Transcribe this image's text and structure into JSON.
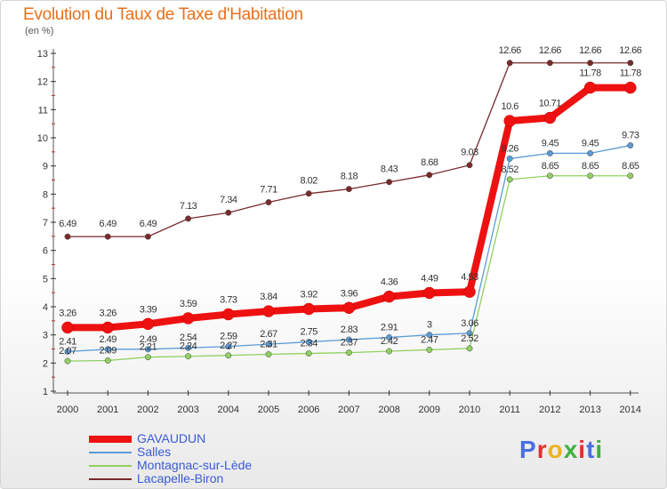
{
  "header": {
    "title": "Evolution du Taux de Taxe d'Habitation",
    "unit": "(en %)"
  },
  "brand": {
    "text": "Proxiti",
    "colors": [
      "#4a6fe0",
      "#e03030",
      "#f0b020",
      "#40b040",
      "#e03030",
      "#4a6fe0",
      "#40b040"
    ]
  },
  "chart_data": {
    "type": "line",
    "x": [
      "2000",
      "2001",
      "2002",
      "2003",
      "2004",
      "2005",
      "2006",
      "2007",
      "2008",
      "2009",
      "2010",
      "2011",
      "2012",
      "2013",
      "2014"
    ],
    "ylim": [
      1,
      13
    ],
    "yticks": [
      1,
      2,
      3,
      4,
      5,
      6,
      7,
      8,
      9,
      10,
      11,
      12,
      13
    ],
    "grid": false,
    "legend_position": "bottom-left",
    "series": [
      {
        "name": "GAVAUDUN",
        "color": "#ee1111",
        "values": [
          3.26,
          3.26,
          3.39,
          3.59,
          3.73,
          3.84,
          3.92,
          3.96,
          4.36,
          4.49,
          4.53,
          10.6,
          10.71,
          11.78,
          11.78
        ],
        "labels": [
          "3.26",
          "3.26",
          "3.39",
          "3.59",
          "3.73",
          "3.84",
          "3.92",
          "3.96",
          "4.36",
          "4.49",
          "4.53",
          "10.6",
          "10.71",
          "11.78",
          "11.78"
        ]
      },
      {
        "name": "Salles",
        "color": "#5b9bd5",
        "values": [
          2.41,
          2.49,
          2.49,
          2.54,
          2.59,
          2.67,
          2.75,
          2.83,
          2.91,
          3.0,
          3.06,
          9.26,
          9.45,
          9.45,
          9.73
        ],
        "labels": [
          "2.41",
          "2.49",
          "2.49",
          "2.54",
          "2.59",
          "2.67",
          "2.75",
          "2.83",
          "2.91",
          "3",
          "3.06",
          "9.26",
          "9.45",
          "9.45",
          "9.73"
        ]
      },
      {
        "name": "Montagnac-sur-Lède",
        "color": "#90d060",
        "values": [
          2.07,
          2.09,
          2.21,
          2.24,
          2.27,
          2.31,
          2.34,
          2.37,
          2.42,
          2.47,
          2.52,
          8.52,
          8.65,
          8.65,
          8.65
        ],
        "labels": [
          "2.07",
          "2.09",
          "2.21",
          "2.24",
          "2.27",
          "2.31",
          "2.34",
          "2.37",
          "2.42",
          "2.47",
          "2.52",
          "8.52",
          "8.65",
          "8.65",
          "8.65"
        ]
      },
      {
        "name": "Lacapelle-Biron",
        "color": "#7a2a2a",
        "values": [
          6.49,
          6.49,
          6.49,
          7.13,
          7.34,
          7.71,
          8.02,
          8.18,
          8.43,
          8.68,
          9.03,
          12.66,
          12.66,
          12.66,
          12.66
        ],
        "labels": [
          "6.49",
          "6.49",
          "6.49",
          "7.13",
          "7.34",
          "7.71",
          "8.02",
          "8.18",
          "8.43",
          "8.68",
          "9.03",
          "12.66",
          "12.66",
          "12.66",
          "12.66"
        ]
      }
    ]
  }
}
